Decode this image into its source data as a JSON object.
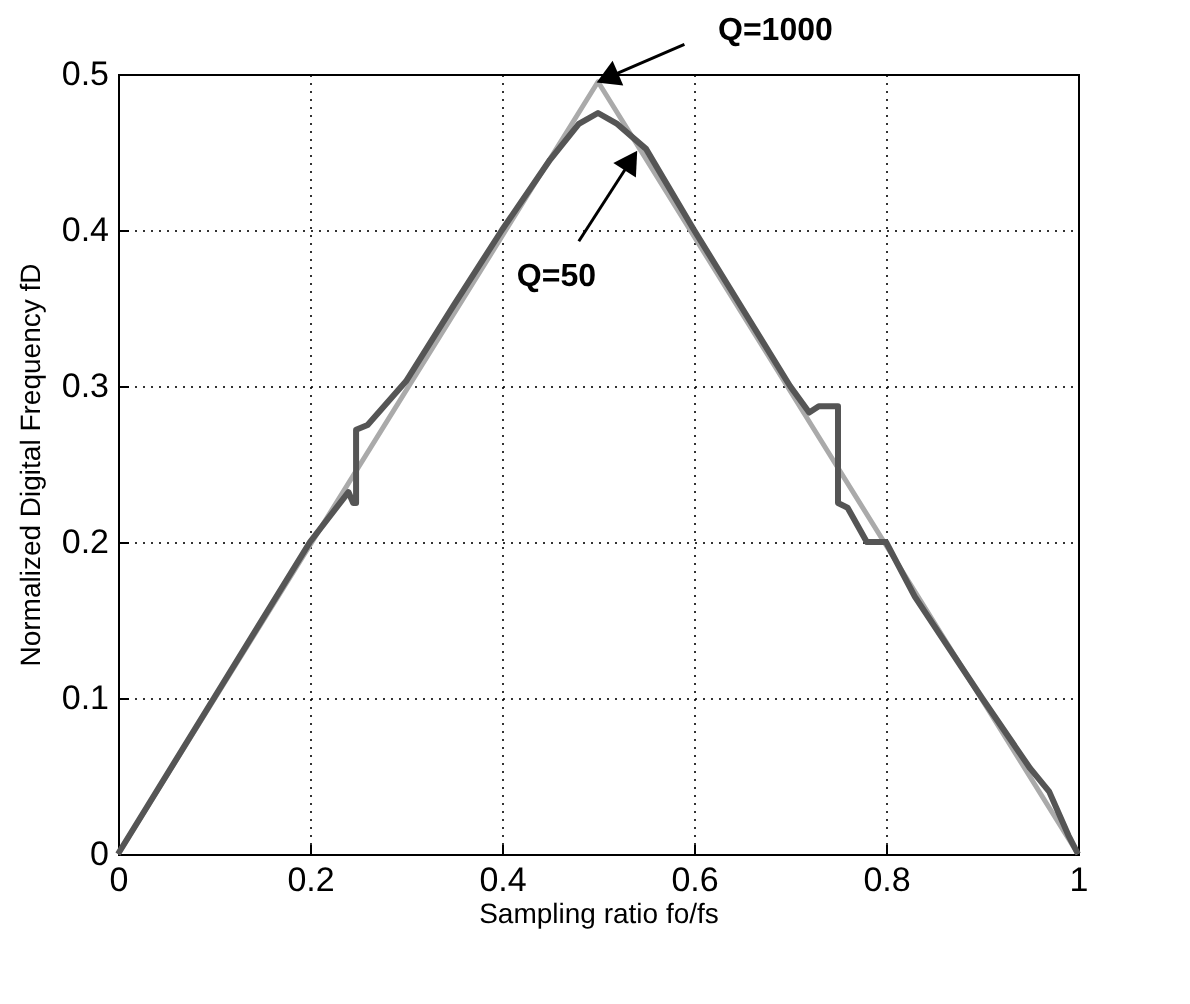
{
  "chart_data": {
    "type": "line",
    "xlabel": "Sampling ratio fo/fs",
    "ylabel": "Normalized Digital Frequency  fD",
    "xlim": [
      0,
      1
    ],
    "ylim": [
      0,
      0.5
    ],
    "xticks": [
      0,
      0.2,
      0.4,
      0.6,
      0.8,
      1
    ],
    "yticks": [
      0,
      0.1,
      0.2,
      0.3,
      0.4,
      0.5
    ],
    "grid": true,
    "line_style": "solid",
    "series": [
      {
        "color": "#aaaaaa",
        "x": [
          0,
          0.5,
          1
        ],
        "values": [
          0,
          0.495,
          0
        ]
      },
      {
        "color": "#555555",
        "x": [
          0,
          0.1,
          0.2,
          0.24,
          0.245,
          0.248,
          0.248,
          0.26,
          0.3,
          0.35,
          0.4,
          0.45,
          0.48,
          0.5,
          0.52,
          0.55,
          0.6,
          0.65,
          0.7,
          0.72,
          0.73,
          0.75,
          0.75,
          0.76,
          0.78,
          0.8,
          0.83,
          0.9,
          0.95,
          0.97,
          0.99,
          1
        ],
        "values": [
          0,
          0.1,
          0.2,
          0.232,
          0.225,
          0.225,
          0.272,
          0.275,
          0.303,
          0.352,
          0.4,
          0.445,
          0.468,
          0.475,
          0.468,
          0.452,
          0.4,
          0.35,
          0.3,
          0.283,
          0.287,
          0.287,
          0.225,
          0.222,
          0.2,
          0.2,
          0.165,
          0.1,
          0.055,
          0.04,
          0.012,
          0
        ]
      }
    ],
    "annotations": [
      {
        "text": "Q=1000",
        "x": 0.5,
        "y": 0.495
      },
      {
        "text": "Q=50",
        "x": 0.54,
        "y": 0.45
      }
    ]
  }
}
